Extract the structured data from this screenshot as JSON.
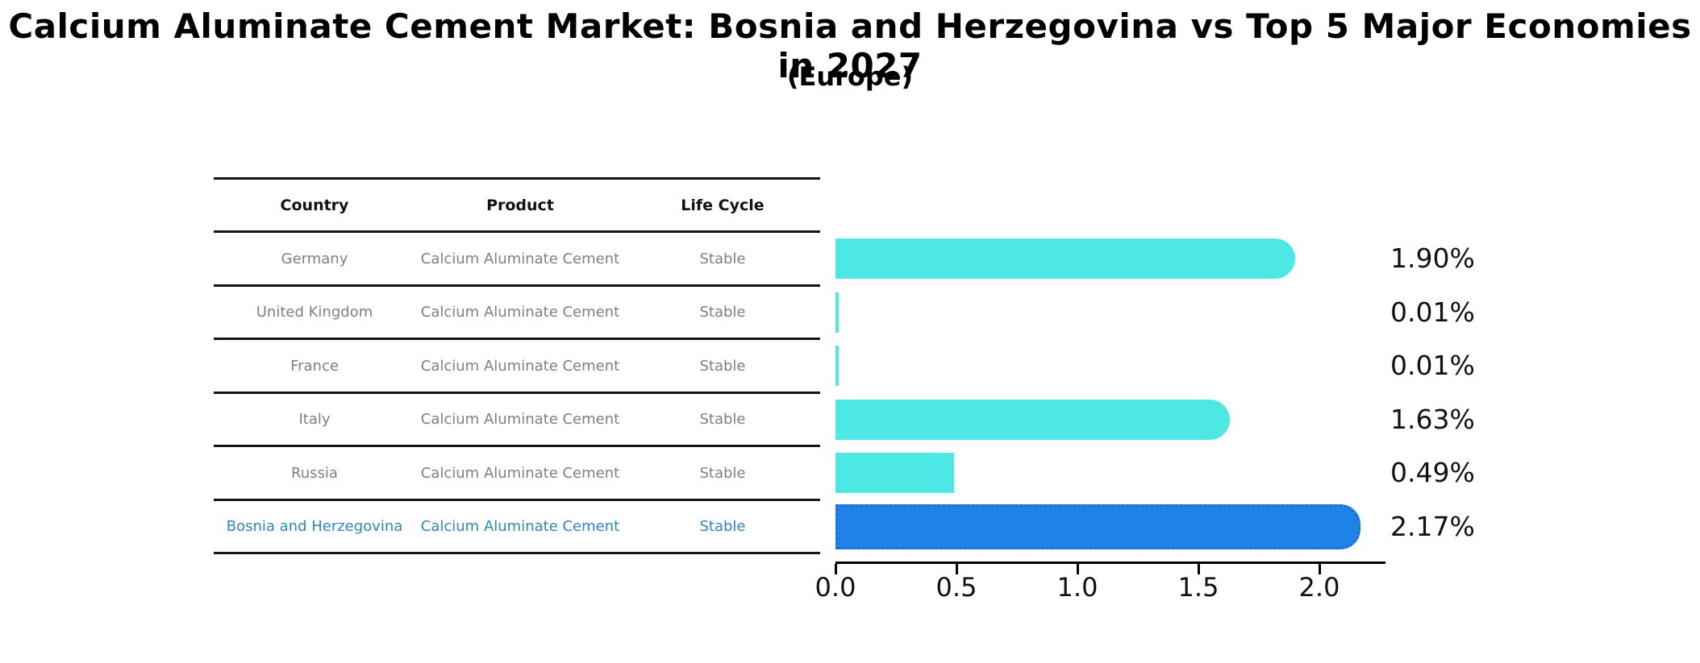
{
  "title": "Calcium Aluminate Cement Market: Bosnia and Herzegovina vs Top 5 Major Economies in 2027",
  "subtitle": "(Europe)",
  "table": {
    "headers": [
      "Country",
      "Product",
      "Life Cycle"
    ],
    "rows": [
      {
        "country": "Germany",
        "product": "Calcium Aluminate Cement",
        "life_cycle": "Stable"
      },
      {
        "country": "United Kingdom",
        "product": "Calcium Aluminate Cement",
        "life_cycle": "Stable"
      },
      {
        "country": "France",
        "product": "Calcium Aluminate Cement",
        "life_cycle": "Stable"
      },
      {
        "country": "Italy",
        "product": "Calcium Aluminate Cement",
        "life_cycle": "Stable"
      },
      {
        "country": "Russia",
        "product": "Calcium Aluminate Cement",
        "life_cycle": "Stable"
      },
      {
        "country": "Bosnia and Herzegovina",
        "product": "Calcium Aluminate Cement",
        "life_cycle": "Stable"
      }
    ]
  },
  "chart_data": {
    "type": "bar",
    "orientation": "horizontal",
    "title": "Calcium Aluminate Cement Market: Bosnia and Herzegovina vs Top 5 Major Economies in 2027 (Europe)",
    "categories": [
      "Germany",
      "United Kingdom",
      "France",
      "Italy",
      "Russia",
      "Bosnia and Herzegovina"
    ],
    "values": [
      1.9,
      0.01,
      0.01,
      1.63,
      0.49,
      2.17
    ],
    "value_labels": [
      "1.90%",
      "0.01%",
      "0.01%",
      "1.63%",
      "0.49%",
      "2.17%"
    ],
    "xticks": [
      "0.0",
      "0.5",
      "1.0",
      "1.5",
      "2.0"
    ],
    "xtick_values": [
      0.0,
      0.5,
      1.0,
      1.5,
      2.0
    ],
    "xlim": [
      0,
      2.27
    ],
    "grid": false,
    "legend": "none",
    "highlight_index": 5
  },
  "colors": {
    "bar": "#4DE8E4",
    "highlight_bar": "#1E82E6",
    "highlight_border": "#1D6FD6",
    "highlight_text": "#2E86C1",
    "row_text": "#7F7F7F",
    "header_text": "#111111",
    "value_text": "#111111",
    "axis": "#000000"
  }
}
